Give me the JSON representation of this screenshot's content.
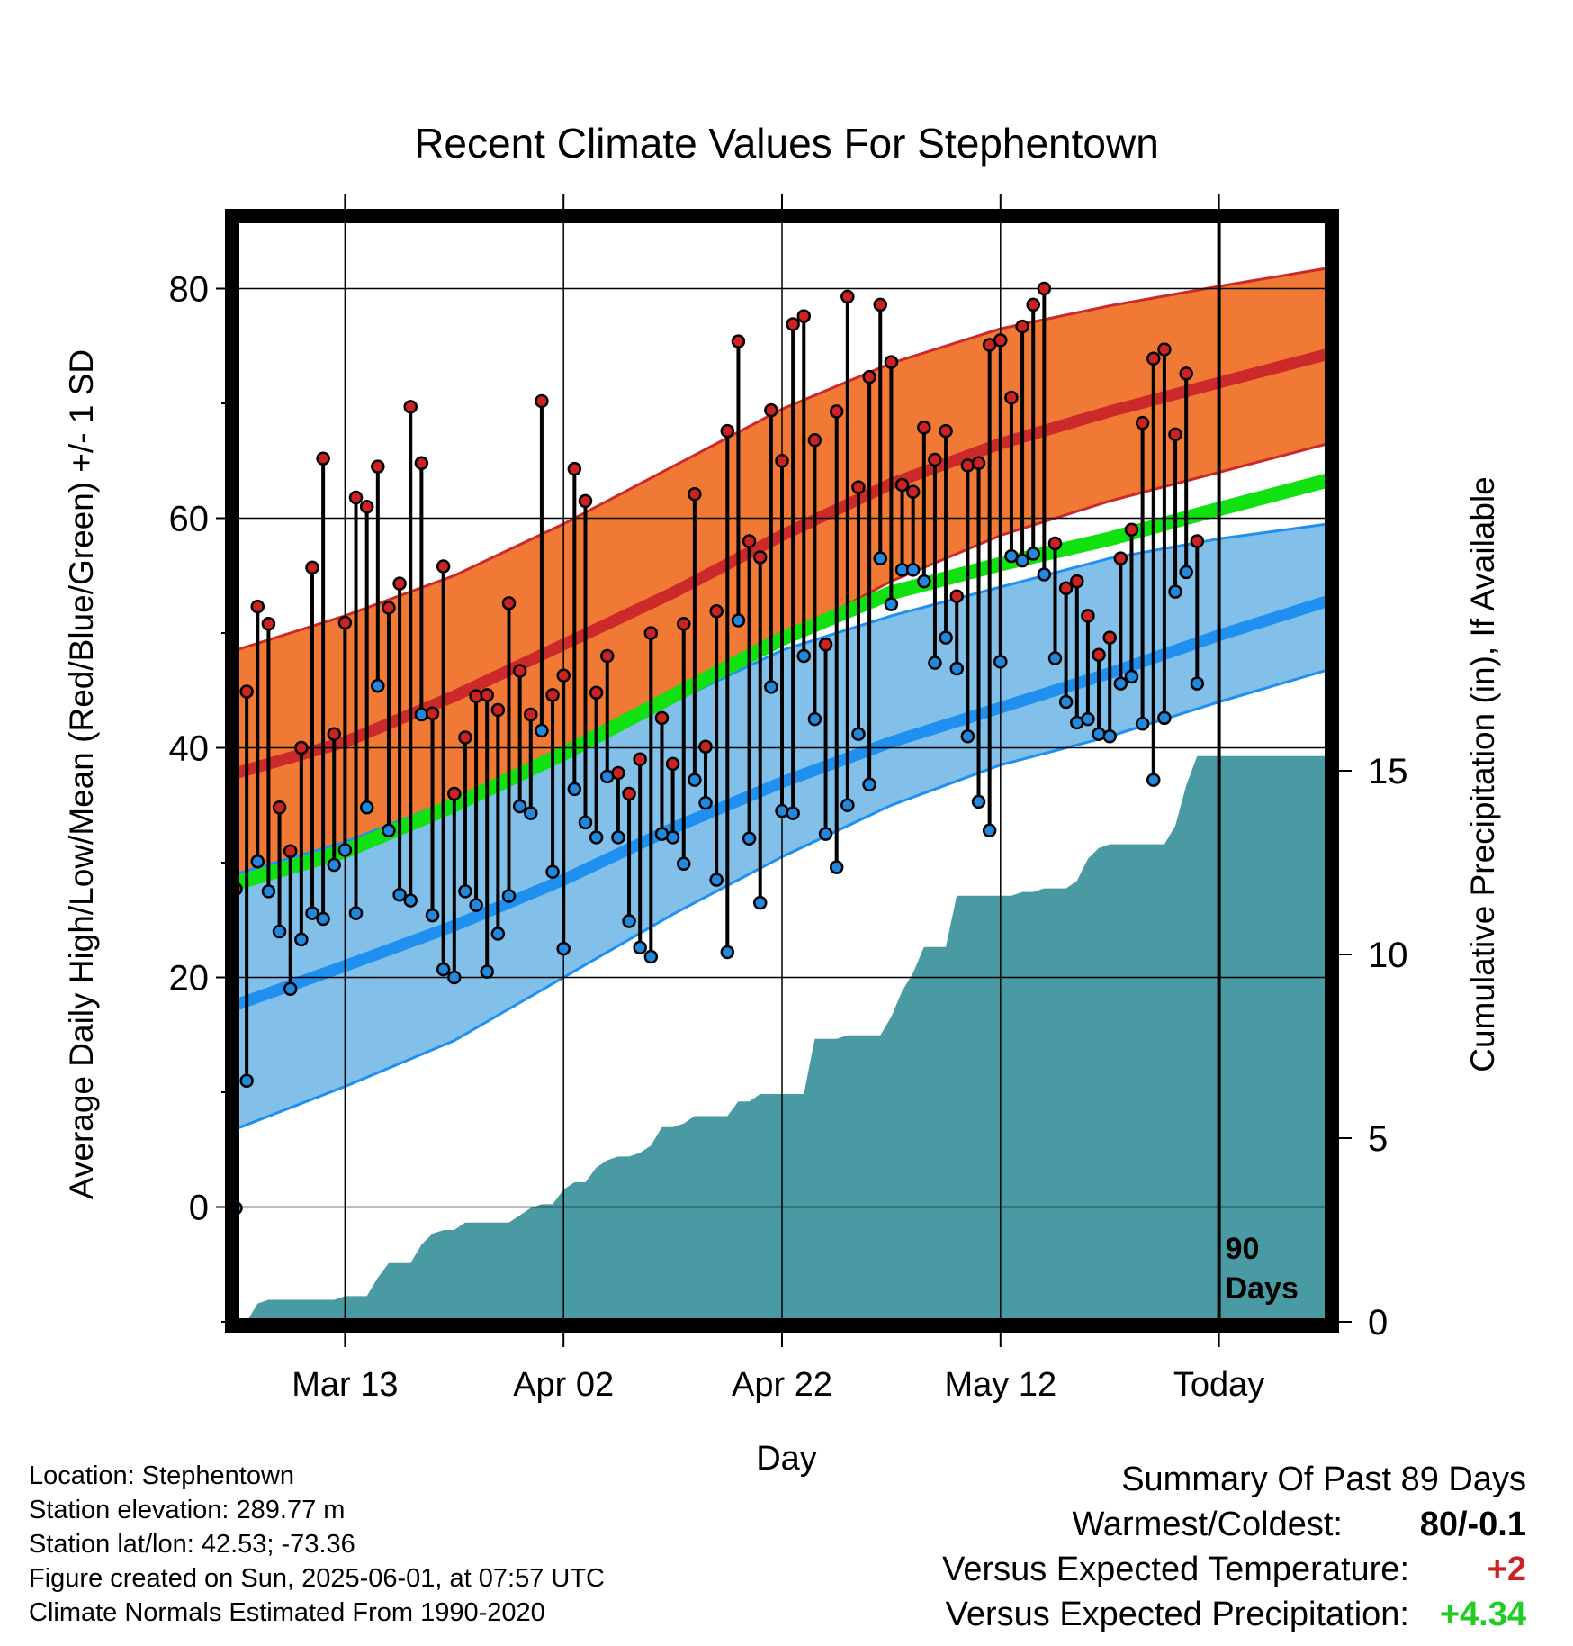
{
  "chart_data": {
    "type": "line",
    "title": "Recent Climate Values For Stephentown",
    "xlabel": "Day",
    "ylabel": "Average Daily High/Low/Mean (Red/Blue/Green) +/- 1 SD",
    "y2label": "Cumulative Precipitation (in), If Available",
    "ylim": [
      -10,
      86
    ],
    "y2lim": [
      0,
      30
    ],
    "yticks": [
      0,
      20,
      40,
      60,
      80
    ],
    "y2ticks": [
      0,
      5,
      10,
      15
    ],
    "xlim": [
      0,
      100
    ],
    "xticks": [
      {
        "day": 10,
        "label": "Mar 13"
      },
      {
        "day": 30,
        "label": "Apr 02"
      },
      {
        "day": 50,
        "label": "Apr 22"
      },
      {
        "day": 70,
        "label": "May 12"
      },
      {
        "day": 90,
        "label": "Today"
      }
    ],
    "today_marker": {
      "day": 90,
      "label_line1": "90",
      "label_line2": "Days"
    },
    "grid": true,
    "normals": {
      "x": [
        0,
        10,
        20,
        30,
        40,
        50,
        60,
        70,
        80,
        90,
        100
      ],
      "high_mean": [
        37.8,
        40.5,
        44.5,
        49.0,
        53.5,
        58.5,
        63.0,
        66.5,
        69.3,
        71.8,
        74.3
      ],
      "high_upper": [
        48.5,
        51.5,
        55.0,
        59.5,
        64.5,
        69.5,
        73.5,
        76.5,
        78.5,
        80.2,
        81.8
      ],
      "high_lower": [
        29.0,
        31.5,
        35.0,
        39.0,
        43.5,
        49.5,
        54.5,
        58.5,
        61.5,
        64.0,
        66.5
      ],
      "avg_mean": [
        28.2,
        31.0,
        35.0,
        39.5,
        44.5,
        49.5,
        53.5,
        56.0,
        58.2,
        60.8,
        63.3
      ],
      "low_mean": [
        17.6,
        21.0,
        24.5,
        28.5,
        33.0,
        37.0,
        40.5,
        43.5,
        46.5,
        49.8,
        52.8
      ],
      "low_upper": [
        29.0,
        31.8,
        35.5,
        39.5,
        44.0,
        48.5,
        51.5,
        54.0,
        56.5,
        58.2,
        59.5
      ],
      "low_lower": [
        6.8,
        10.5,
        14.5,
        20.0,
        25.5,
        30.5,
        35.0,
        38.5,
        41.0,
        44.0,
        46.8
      ]
    },
    "series": [
      {
        "name": "High",
        "color": "#cc2222",
        "values": [
          27.7,
          44.9,
          52.3,
          50.8,
          34.8,
          31.0,
          40.0,
          55.7,
          65.2,
          41.2,
          50.9,
          61.8,
          61.0,
          64.5,
          52.2,
          54.3,
          69.7,
          64.8,
          43.0,
          55.8,
          36.0,
          40.9,
          44.5,
          44.6,
          43.3,
          52.6,
          46.7,
          42.9,
          70.2,
          44.6,
          46.3,
          64.3,
          61.5,
          44.8,
          48.0,
          37.8,
          36.0,
          39.0,
          50.0,
          42.6,
          38.6,
          50.8,
          62.1,
          40.1,
          51.9,
          67.6,
          75.4,
          58.0,
          56.6,
          69.4,
          65.0,
          76.9,
          77.6,
          66.8,
          49.0,
          69.3,
          79.3,
          62.7,
          72.3,
          78.6,
          73.6,
          62.9,
          62.3,
          67.9,
          65.1,
          67.6,
          53.2,
          64.6,
          64.8,
          75.1,
          75.5,
          70.5,
          76.7,
          78.6,
          80.0,
          57.8,
          53.9,
          54.5,
          51.5,
          48.1,
          49.6,
          56.5,
          59.0,
          68.3,
          73.9,
          74.7,
          67.3,
          72.6,
          58.0
        ]
      },
      {
        "name": "Low",
        "color": "#2288dd",
        "values": [
          -0.1,
          11.0,
          30.1,
          27.5,
          24.0,
          19.0,
          23.3,
          25.6,
          25.1,
          29.8,
          31.1,
          25.6,
          34.8,
          45.4,
          32.8,
          27.2,
          26.7,
          42.9,
          25.4,
          20.7,
          20.0,
          27.5,
          26.3,
          20.5,
          23.8,
          27.1,
          34.9,
          34.3,
          41.5,
          29.2,
          22.5,
          36.4,
          33.5,
          32.2,
          37.5,
          32.2,
          24.9,
          22.6,
          21.8,
          32.5,
          32.2,
          29.9,
          37.2,
          35.2,
          28.5,
          22.2,
          51.1,
          32.1,
          26.5,
          45.3,
          34.5,
          34.3,
          48.0,
          42.5,
          32.5,
          29.6,
          35.0,
          41.2,
          36.8,
          56.5,
          52.5,
          55.5,
          55.5,
          54.5,
          47.4,
          49.6,
          46.9,
          41.0,
          35.3,
          32.8,
          47.5,
          56.7,
          56.3,
          56.9,
          55.1,
          47.8,
          44.0,
          42.2,
          42.5,
          41.2,
          41.0,
          45.6,
          46.2,
          42.1,
          37.2,
          42.6,
          53.6,
          55.3,
          45.6
        ]
      },
      {
        "name": "Precipitation",
        "color": "#4a9aa4",
        "values": [
          0,
          0,
          0.5,
          0.6,
          0.6,
          0.6,
          0.6,
          0.6,
          0.6,
          0.6,
          0.7,
          0.7,
          0.7,
          1.2,
          1.6,
          1.6,
          1.6,
          2.1,
          2.4,
          2.5,
          2.5,
          2.7,
          2.7,
          2.7,
          2.7,
          2.7,
          2.9,
          3.1,
          3.2,
          3.2,
          3.6,
          3.8,
          3.8,
          4.2,
          4.4,
          4.5,
          4.5,
          4.6,
          4.8,
          5.3,
          5.3,
          5.4,
          5.6,
          5.6,
          5.6,
          5.6,
          6.0,
          6.0,
          6.2,
          6.2,
          6.2,
          6.2,
          6.2,
          7.7,
          7.7,
          7.7,
          7.8,
          7.8,
          7.8,
          7.8,
          8.3,
          9.0,
          9.5,
          10.2,
          10.2,
          10.2,
          11.6,
          11.6,
          11.6,
          11.6,
          11.6,
          11.6,
          11.7,
          11.7,
          11.8,
          11.8,
          11.8,
          12.0,
          12.6,
          12.9,
          13.0,
          13.0,
          13.0,
          13.0,
          13.0,
          13.0,
          13.5,
          14.6,
          15.4,
          15.4
        ]
      }
    ]
  },
  "info": {
    "location": "Location: Stephentown",
    "elevation": "Station elevation: 289.77 m",
    "latlon": "Station lat/lon: 42.53; -73.36",
    "created": "Figure created on Sun, 2025-06-01, at 07:57 UTC",
    "normals": "Climate Normals Estimated From 1990-2020"
  },
  "summary": {
    "heading": "Summary Of Past 89 Days",
    "warmest_coldest_label": "Warmest/Coldest:",
    "warmest_coldest_value": "80/-0.1",
    "temp_label": "Versus Expected Temperature:",
    "temp_value": "+2",
    "precip_label": "Versus Expected Precipitation:",
    "precip_value": "+4.34"
  },
  "colors": {
    "high_band": "#f07a35",
    "high_line": "#cc2a2a",
    "low_band": "#82c0ea",
    "low_line": "#1f8ff0",
    "mean_line": "#11e011",
    "precip": "#4a9aa4",
    "high_dot": "#cc2222",
    "low_dot": "#2288dd",
    "temp_value": "#cc2222",
    "precip_value": "#22cc22"
  }
}
